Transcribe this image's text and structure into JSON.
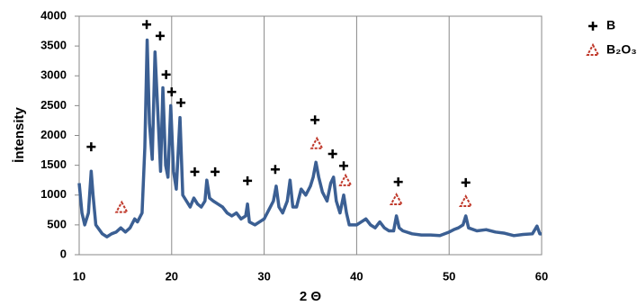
{
  "chart_data": {
    "type": "line",
    "xlabel": "2 Θ",
    "ylabel": "İntensity",
    "xlim": [
      10,
      60
    ],
    "xticks": [
      10,
      20,
      30,
      40,
      50,
      60
    ],
    "ylim": [
      0,
      4000
    ],
    "yticks": [
      0,
      500,
      1000,
      1500,
      2000,
      2500,
      3000,
      3500,
      4000
    ],
    "grid": "x",
    "legend": "right",
    "x": [
      10,
      10.3,
      10.6,
      11,
      11.3,
      11.5,
      11.8,
      12.5,
      13,
      13.5,
      14,
      14.5,
      15,
      15.5,
      16,
      16.3,
      16.8,
      17.1,
      17.35,
      17.6,
      17.9,
      18.2,
      18.5,
      18.8,
      19.05,
      19.35,
      19.6,
      19.9,
      20.2,
      20.5,
      20.9,
      21.2,
      21.6,
      22,
      22.4,
      22.8,
      23.2,
      23.6,
      23.8,
      24.1,
      24.5,
      25,
      25.5,
      26,
      26.5,
      27,
      27.5,
      28,
      28.2,
      28.4,
      29,
      29.5,
      30,
      30.5,
      31,
      31.3,
      31.6,
      32,
      32.5,
      32.8,
      33.1,
      33.5,
      34,
      34.5,
      35,
      35.3,
      35.6,
      35.9,
      36.3,
      36.8,
      37.2,
      37.5,
      37.8,
      38.2,
      38.6,
      38.9,
      39.2,
      40,
      40.5,
      41,
      41.5,
      42,
      42.5,
      43,
      43.5,
      44,
      44.3,
      44.6,
      45,
      46,
      47,
      48,
      49,
      50,
      50.5,
      51,
      51.5,
      51.8,
      52.1,
      53,
      54,
      55,
      56,
      57,
      58,
      59,
      59.5,
      59.8,
      60
    ],
    "series": [
      {
        "color": "#3b5f93",
        "values": [
          1200,
          700,
          500,
          700,
          1400,
          1000,
          500,
          350,
          300,
          350,
          380,
          450,
          380,
          450,
          600,
          550,
          700,
          1800,
          3600,
          2200,
          1600,
          3400,
          2400,
          1400,
          2800,
          1500,
          1300,
          2500,
          1400,
          1100,
          2300,
          1000,
          900,
          800,
          950,
          850,
          800,
          900,
          1250,
          950,
          900,
          850,
          800,
          700,
          650,
          700,
          600,
          650,
          850,
          550,
          500,
          550,
          600,
          750,
          900,
          1150,
          800,
          700,
          900,
          1250,
          800,
          800,
          1100,
          1000,
          1150,
          1300,
          1550,
          1300,
          1050,
          900,
          1200,
          1300,
          900,
          700,
          1000,
          700,
          500,
          500,
          550,
          600,
          500,
          450,
          550,
          450,
          400,
          400,
          650,
          450,
          400,
          350,
          330,
          330,
          320,
          380,
          420,
          450,
          500,
          650,
          450,
          400,
          420,
          380,
          360,
          320,
          340,
          350,
          480,
          350,
          350
        ]
      },
      {
        "name": "B",
        "marker": "plus",
        "color": "#000000",
        "x": [
          11.3,
          17.3,
          18.75,
          19.4,
          20.0,
          21.0,
          22.5,
          24.7,
          28.2,
          31.2,
          35.5,
          37.4,
          38.6,
          44.5,
          51.8
        ],
        "values": [
          1810,
          3860,
          3670,
          3020,
          2730,
          2550,
          1390,
          1390,
          1240,
          1430,
          2260,
          1690,
          1490,
          1220,
          1210
        ]
      },
      {
        "name": "B₂O₃",
        "marker": "triangle",
        "color": "#c0392b",
        "x": [
          14.6,
          35.7,
          38.8,
          44.3,
          51.8
        ],
        "values": [
          790,
          1860,
          1240,
          920,
          890
        ]
      }
    ]
  }
}
